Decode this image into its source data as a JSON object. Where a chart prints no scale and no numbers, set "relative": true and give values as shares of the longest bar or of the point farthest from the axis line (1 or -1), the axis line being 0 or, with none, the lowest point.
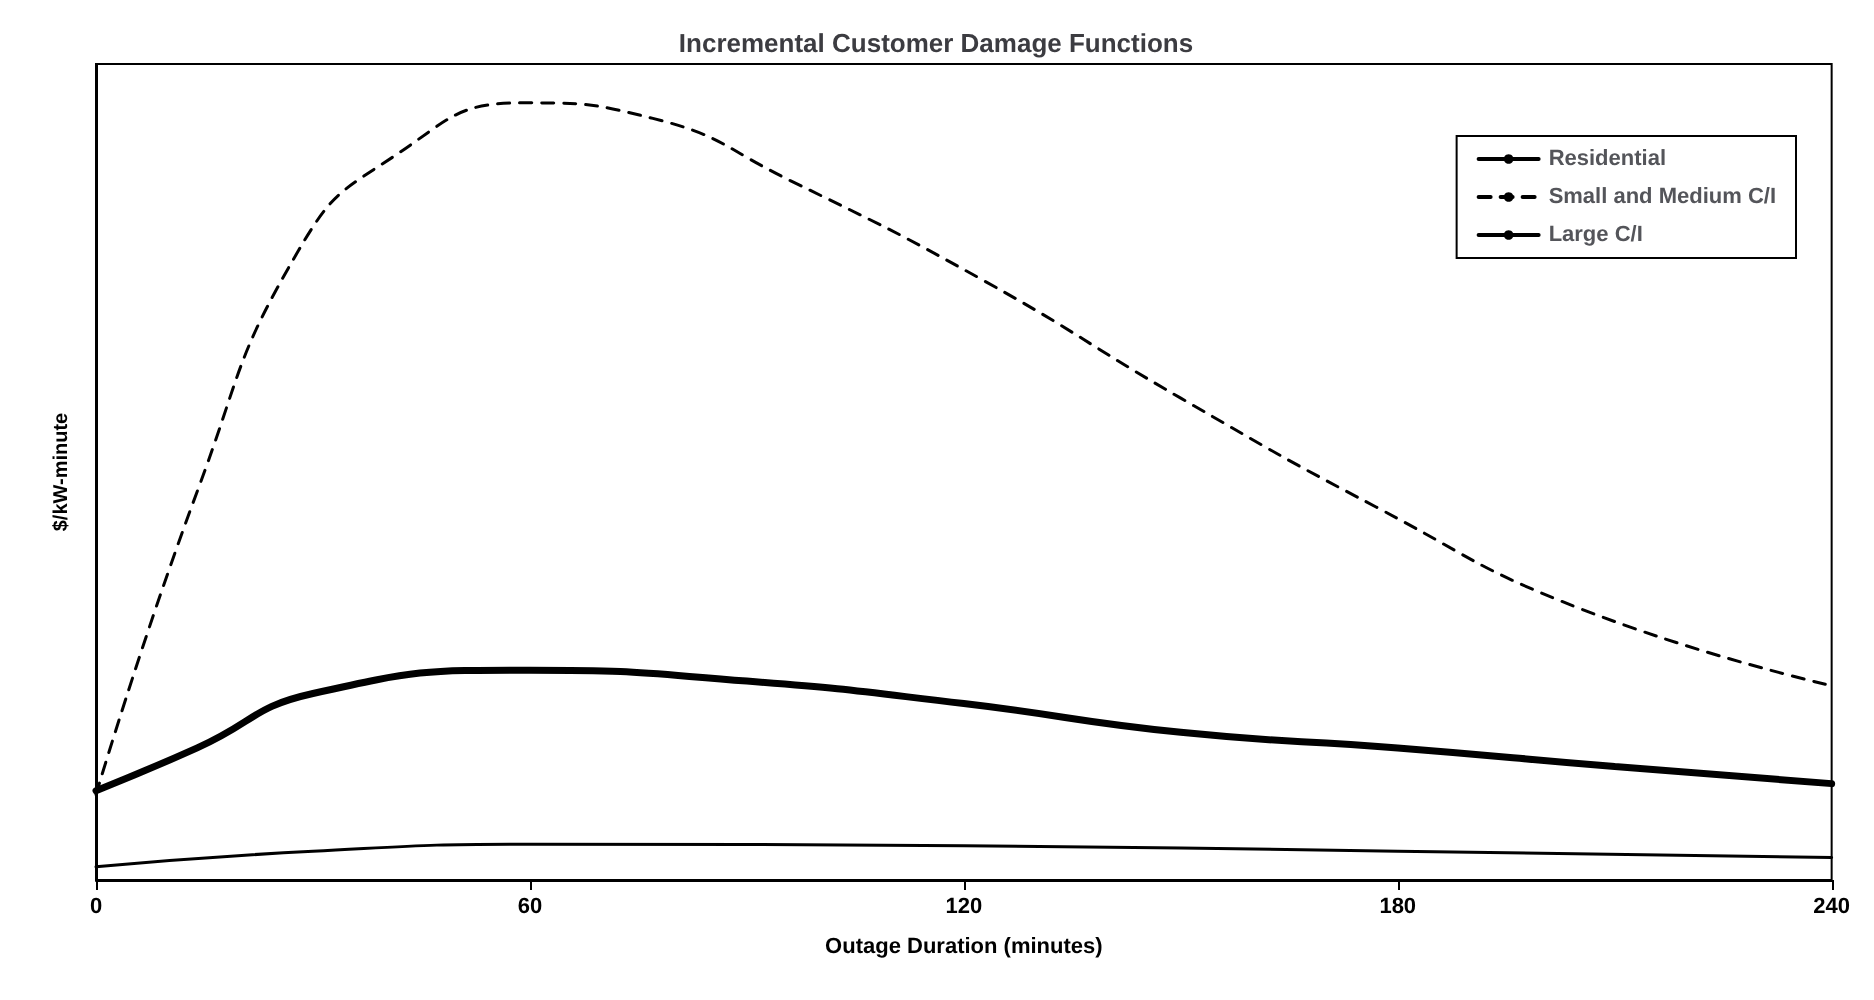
{
  "chart_data": {
    "type": "line",
    "title": "Incremental Customer Damage Functions",
    "xlabel": "Outage Duration (minutes)",
    "ylabel": "$/kW-minute",
    "relative": true,
    "xlim": [
      0,
      240
    ],
    "xticks": [
      0,
      60,
      120,
      180,
      240
    ],
    "grid": false,
    "legend": "top right",
    "marker": "none",
    "series": [
      {
        "name": "Residential",
        "color": "#000000",
        "line_style": "solid",
        "x": [
          0,
          30,
          60,
          120,
          180,
          240
        ],
        "values": [
          0.017,
          0.037,
          0.046,
          0.044,
          0.037,
          0.029
        ]
      },
      {
        "name": "Small and Medium C/I",
        "color": "#000000",
        "line_style": "dashed",
        "x": [
          0,
          14,
          28,
          41,
          59,
          77,
          96,
          123,
          150,
          177,
          205,
          240
        ],
        "values": [
          0.11,
          0.5,
          0.81,
          0.93,
          1,
          0.98,
          0.9,
          0.77,
          0.62,
          0.48,
          0.35,
          0.25
        ]
      },
      {
        "name": "Large C/I",
        "color": "#000000",
        "line_style": "solid",
        "x": [
          0,
          14,
          30,
          60,
          90,
          120,
          150,
          180,
          210,
          240
        ],
        "values": [
          0.115,
          0.17,
          0.24,
          0.27,
          0.256,
          0.227,
          0.19,
          0.17,
          0.146,
          0.124
        ]
      }
    ]
  }
}
